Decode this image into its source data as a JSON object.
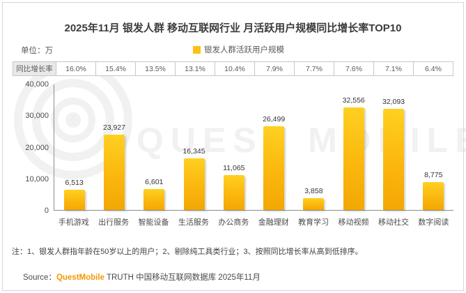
{
  "title": "2025年11月 银发人群 移动互联网行业 月活跃用户规模同比增长率TOP10",
  "unit_label": "单位：万",
  "legend": {
    "label": "银发人群活跃用户规模",
    "color": "#ffc013"
  },
  "growth_table": {
    "row_label": "同比增长率",
    "values": [
      "16.0%",
      "15.4%",
      "13.5%",
      "13.1%",
      "10.4%",
      "7.9%",
      "7.7%",
      "7.6%",
      "7.1%",
      "6.4%"
    ]
  },
  "chart_data": {
    "type": "bar",
    "title": "2025年11月 银发人群 移动互联网行业 月活跃用户规模同比增长率TOP10",
    "categories": [
      "手机游戏",
      "出行服务",
      "智能设备",
      "生活服务",
      "办公商务",
      "金融理财",
      "教育学习",
      "移动视频",
      "移动社交",
      "数字阅读"
    ],
    "values": [
      6513,
      23927,
      6601,
      16345,
      11065,
      26499,
      3858,
      32556,
      32093,
      8775
    ],
    "value_labels": [
      "6,513",
      "23,927",
      "6,601",
      "16,345",
      "11,065",
      "26,499",
      "3,858",
      "32,556",
      "32,093",
      "8,775"
    ],
    "growth_rates_pct": [
      16.0,
      15.4,
      13.5,
      13.1,
      10.4,
      7.9,
      7.7,
      7.6,
      7.1,
      6.4
    ],
    "unit": "万",
    "ylim": [
      0,
      40000
    ],
    "yticks": [
      "40,000",
      "30,000",
      "20,000",
      "10,000",
      "0"
    ],
    "legend": "银发人群活跃用户规模",
    "grid": false,
    "legend_position": "top-center",
    "bar_color": "#fbb70e"
  },
  "watermark": {
    "text": "QUEST MOBILE"
  },
  "note": "注：1、银发人群指年龄在50岁以上的用户；2、剔除纯工具类行业；3、按照同比增长率从高到低排序。",
  "source": {
    "prefix": "Source：",
    "brand": "QuestMobile",
    "suffix": " TRUTH 中国移动互联网数据库 2025年11月",
    "brand_color": "#f39800"
  }
}
